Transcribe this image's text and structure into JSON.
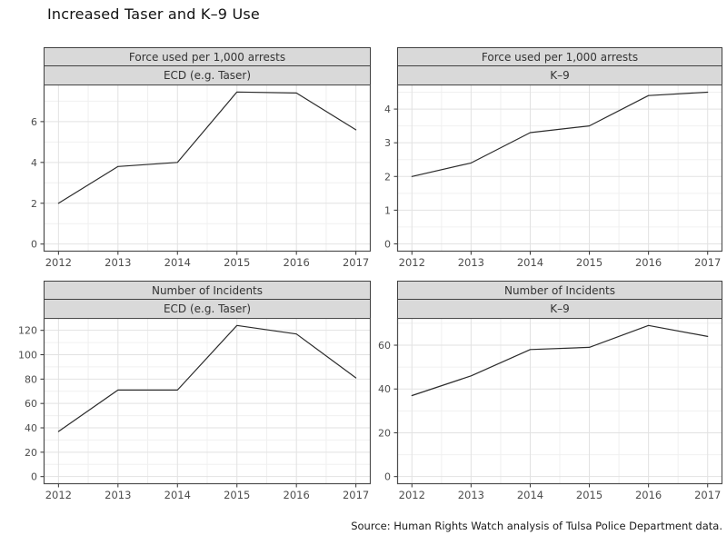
{
  "title": "Increased Taser and K–9 Use",
  "source": "Source: Human Rights Watch analysis of Tulsa Police Department data.",
  "colors": {
    "background": "#ffffff",
    "header_fill": "#d9d9d9",
    "header_border": "#404040",
    "panel_border": "#4d4d4d",
    "grid_major": "#e2e2e2",
    "grid_minor": "#f0f0f0",
    "line": "#2b2b2b",
    "tick": "#333333",
    "tick_label": "#4d4d4d"
  },
  "chart_data": [
    {
      "type": "line",
      "facet_col": "Force used per 1,000 arrests",
      "facet_row": "ECD (e.g. Taser)",
      "x": [
        2012,
        2013,
        2014,
        2015,
        2016,
        2017
      ],
      "values": [
        2.0,
        3.8,
        4.0,
        7.45,
        7.4,
        5.6
      ],
      "xlim": [
        2011.75,
        2017.25
      ],
      "ylim": [
        -0.37,
        7.82
      ],
      "xticks": [
        2012,
        2013,
        2014,
        2015,
        2016,
        2017
      ],
      "x_minor": [
        2012.5,
        2013.5,
        2014.5,
        2015.5,
        2016.5
      ],
      "yticks": [
        0,
        2,
        4,
        6
      ],
      "y_minor": [
        1,
        3,
        5,
        7
      ],
      "grid": true
    },
    {
      "type": "line",
      "facet_col": "Force used per 1,000 arrests",
      "facet_row": "K–9",
      "x": [
        2012,
        2013,
        2014,
        2015,
        2016,
        2017
      ],
      "values": [
        2.0,
        2.4,
        3.3,
        3.5,
        4.4,
        4.5
      ],
      "xlim": [
        2011.75,
        2017.25
      ],
      "ylim": [
        -0.23,
        4.73
      ],
      "xticks": [
        2012,
        2013,
        2014,
        2015,
        2016,
        2017
      ],
      "x_minor": [
        2012.5,
        2013.5,
        2014.5,
        2015.5,
        2016.5
      ],
      "yticks": [
        0,
        1,
        2,
        3,
        4
      ],
      "y_minor": [
        0.5,
        1.5,
        2.5,
        3.5,
        4.5
      ],
      "grid": true
    },
    {
      "type": "line",
      "facet_col": "Number of Incidents",
      "facet_row": "ECD (e.g. Taser)",
      "x": [
        2012,
        2013,
        2014,
        2015,
        2016,
        2017
      ],
      "values": [
        37,
        71,
        71,
        124,
        117,
        81
      ],
      "xlim": [
        2011.75,
        2017.25
      ],
      "ylim": [
        -6.2,
        130.2
      ],
      "xticks": [
        2012,
        2013,
        2014,
        2015,
        2016,
        2017
      ],
      "x_minor": [
        2012.5,
        2013.5,
        2014.5,
        2015.5,
        2016.5
      ],
      "yticks": [
        0,
        20,
        40,
        60,
        80,
        100,
        120
      ],
      "y_minor": [
        10,
        30,
        50,
        70,
        90,
        110,
        130
      ],
      "grid": true
    },
    {
      "type": "line",
      "facet_col": "Number of Incidents",
      "facet_row": "K–9",
      "x": [
        2012,
        2013,
        2014,
        2015,
        2016,
        2017
      ],
      "values": [
        37,
        46,
        58,
        59,
        69,
        64
      ],
      "xlim": [
        2011.75,
        2017.25
      ],
      "ylim": [
        -3.45,
        72.45
      ],
      "xticks": [
        2012,
        2013,
        2014,
        2015,
        2016,
        2017
      ],
      "x_minor": [
        2012.5,
        2013.5,
        2014.5,
        2015.5,
        2016.5
      ],
      "yticks": [
        0,
        20,
        40,
        60
      ],
      "y_minor": [
        10,
        30,
        50,
        70
      ],
      "grid": true
    }
  ]
}
